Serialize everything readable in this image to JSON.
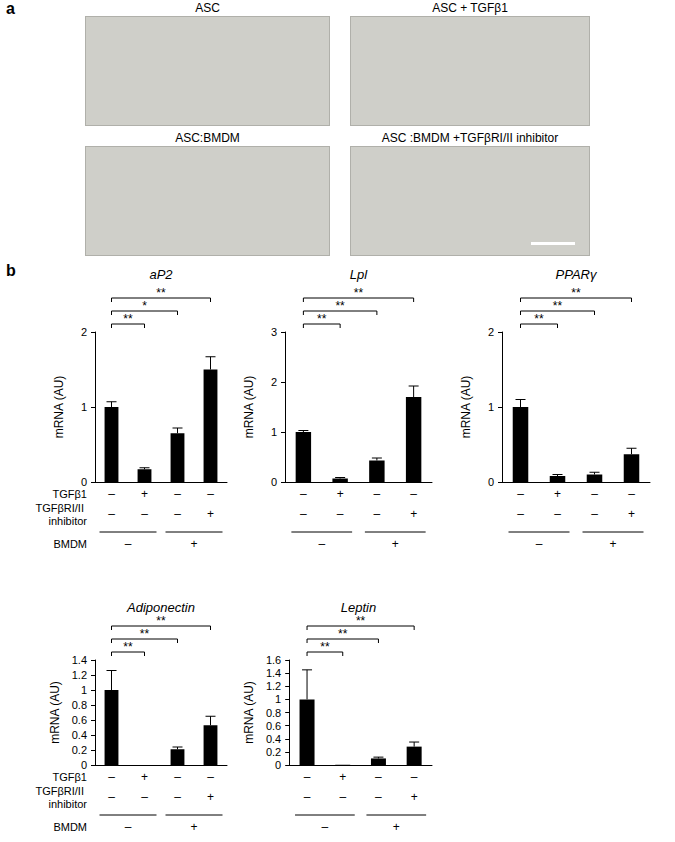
{
  "panel_a": {
    "label": "a",
    "images": [
      {
        "caption": "ASC"
      },
      {
        "caption": "ASC + TGFβ1"
      },
      {
        "caption": "ASC:BMDM"
      },
      {
        "caption": "ASC :BMDM +TGFβRI/II inhibitor"
      }
    ]
  },
  "panel_b": {
    "label": "b"
  },
  "chart_data": [
    {
      "type": "bar",
      "title": "aP2",
      "ylabel": "mRNA (AU)",
      "categories": [
        null,
        null,
        null,
        null
      ],
      "values": [
        1.0,
        0.17,
        0.65,
        1.5
      ],
      "errors": [
        0.07,
        0.02,
        0.07,
        0.17
      ],
      "color": "#000000",
      "ylim": [
        0,
        2
      ],
      "yticks": [
        0,
        1,
        2
      ],
      "grid": false,
      "significance": [
        {
          "pair": [
            0,
            1
          ],
          "label": "**"
        },
        {
          "pair": [
            0,
            2
          ],
          "label": "*"
        },
        {
          "pair": [
            0,
            3
          ],
          "label": "**"
        }
      ],
      "conditions": {
        "labels": [
          "TGFβ1",
          "TGFβRI/II inhibitor",
          "BMDM"
        ],
        "rows": [
          [
            "–",
            "+",
            "–",
            "–"
          ],
          [
            "–",
            "–",
            "–",
            "+"
          ]
        ],
        "groups": [
          "–",
          "+"
        ]
      }
    },
    {
      "type": "bar",
      "title": "Lpl",
      "ylabel": "mRNA (AU)",
      "categories": [
        null,
        null,
        null,
        null
      ],
      "values": [
        1.0,
        0.07,
        0.43,
        1.7
      ],
      "errors": [
        0.03,
        0.02,
        0.05,
        0.22
      ],
      "color": "#000000",
      "ylim": [
        0,
        3
      ],
      "yticks": [
        0,
        1,
        2,
        3
      ],
      "grid": false,
      "significance": [
        {
          "pair": [
            0,
            1
          ],
          "label": "**"
        },
        {
          "pair": [
            0,
            2
          ],
          "label": "**"
        },
        {
          "pair": [
            0,
            3
          ],
          "label": "**"
        }
      ],
      "conditions": {
        "rows": [
          [
            "–",
            "+",
            "–",
            "–"
          ],
          [
            "–",
            "–",
            "–",
            "+"
          ]
        ],
        "groups": [
          "–",
          "+"
        ]
      }
    },
    {
      "type": "bar",
      "title": "PPARγ",
      "ylabel": "mRNA (AU)",
      "categories": [
        null,
        null,
        null,
        null
      ],
      "values": [
        1.0,
        0.08,
        0.1,
        0.37
      ],
      "errors": [
        0.1,
        0.02,
        0.03,
        0.08
      ],
      "color": "#000000",
      "ylim": [
        0,
        2
      ],
      "yticks": [
        0,
        1,
        2
      ],
      "grid": false,
      "significance": [
        {
          "pair": [
            0,
            1
          ],
          "label": "**"
        },
        {
          "pair": [
            0,
            2
          ],
          "label": "**"
        },
        {
          "pair": [
            0,
            3
          ],
          "label": "**"
        }
      ],
      "conditions": {
        "rows": [
          [
            "–",
            "+",
            "–",
            "–"
          ],
          [
            "–",
            "–",
            "–",
            "+"
          ]
        ],
        "groups": [
          "–",
          "+"
        ]
      }
    },
    {
      "type": "bar",
      "title": "Adiponectin",
      "ylabel": "mRNA (AU)",
      "categories": [
        null,
        null,
        null,
        null
      ],
      "values": [
        1.0,
        0.0,
        0.21,
        0.53
      ],
      "errors": [
        0.26,
        0.0,
        0.03,
        0.12
      ],
      "color": "#000000",
      "ylim": [
        0,
        1.4
      ],
      "yticks": [
        0,
        0.2,
        0.4,
        0.6,
        0.8,
        1,
        1.2,
        1.4
      ],
      "grid": false,
      "significance": [
        {
          "pair": [
            0,
            1
          ],
          "label": "**"
        },
        {
          "pair": [
            0,
            2
          ],
          "label": "**"
        },
        {
          "pair": [
            0,
            3
          ],
          "label": "**"
        }
      ],
      "conditions": {
        "labels": [
          "TGFβ1",
          "TGFβRI/II inhibitor",
          "BMDM"
        ],
        "rows": [
          [
            "–",
            "+",
            "–",
            "–"
          ],
          [
            "–",
            "–",
            "–",
            "+"
          ]
        ],
        "groups": [
          "–",
          "+"
        ]
      }
    },
    {
      "type": "bar",
      "title": "Leptin",
      "ylabel": "mRNA (AU)",
      "categories": [
        null,
        null,
        null,
        null
      ],
      "values": [
        1.0,
        0.005,
        0.1,
        0.28
      ],
      "errors": [
        0.45,
        0.0,
        0.02,
        0.07
      ],
      "color": "#000000",
      "ylim": [
        0,
        1.6
      ],
      "yticks": [
        0,
        0.2,
        0.4,
        0.6,
        0.8,
        1,
        1.2,
        1.4,
        1.6
      ],
      "grid": false,
      "significance": [
        {
          "pair": [
            0,
            1
          ],
          "label": "**"
        },
        {
          "pair": [
            0,
            2
          ],
          "label": "**"
        },
        {
          "pair": [
            0,
            3
          ],
          "label": "**"
        }
      ],
      "conditions": {
        "rows": [
          [
            "–",
            "+",
            "–",
            "–"
          ],
          [
            "–",
            "–",
            "–",
            "+"
          ]
        ],
        "groups": [
          "–",
          "+"
        ]
      }
    }
  ]
}
